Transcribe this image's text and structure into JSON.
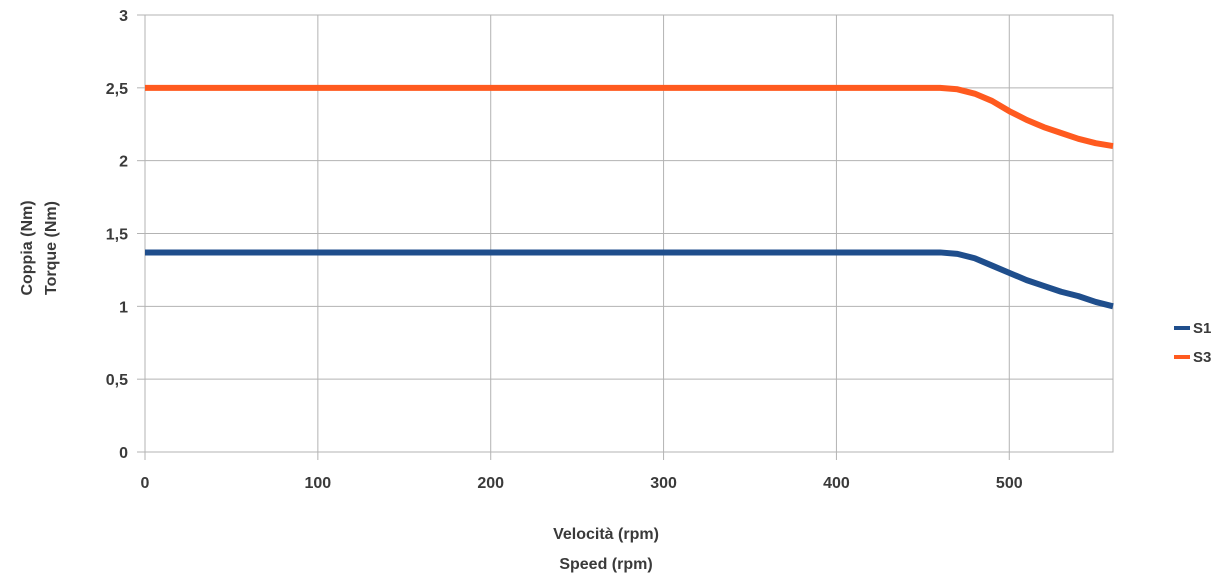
{
  "chart_data": {
    "type": "line",
    "xlabel": [
      "Velocità (rpm)",
      "Speed (rpm)"
    ],
    "ylabel": [
      "Coppia (Nm)",
      "Torque (Nm)"
    ],
    "xlim": [
      0,
      560
    ],
    "ylim": [
      0,
      3
    ],
    "x_ticks": [
      "0",
      "100",
      "200",
      "300",
      "400",
      "500"
    ],
    "x_tick_values": [
      0,
      100,
      200,
      300,
      400,
      500
    ],
    "y_ticks": [
      "0",
      "0,5",
      "1",
      "1,5",
      "2",
      "2,5",
      "3"
    ],
    "y_tick_values": [
      0,
      0.5,
      1,
      1.5,
      2,
      2.5,
      3
    ],
    "grid": true,
    "legend_position": "right",
    "series": [
      {
        "name": "S1",
        "color": "#1f4e8c",
        "points": [
          [
            0,
            1.37
          ],
          [
            100,
            1.37
          ],
          [
            200,
            1.37
          ],
          [
            300,
            1.37
          ],
          [
            400,
            1.37
          ],
          [
            460,
            1.37
          ],
          [
            470,
            1.36
          ],
          [
            480,
            1.33
          ],
          [
            490,
            1.28
          ],
          [
            500,
            1.23
          ],
          [
            510,
            1.18
          ],
          [
            520,
            1.14
          ],
          [
            530,
            1.1
          ],
          [
            540,
            1.07
          ],
          [
            550,
            1.03
          ],
          [
            560,
            1.0
          ]
        ]
      },
      {
        "name": "S3",
        "color": "#ff5a1f",
        "points": [
          [
            0,
            2.5
          ],
          [
            100,
            2.5
          ],
          [
            200,
            2.5
          ],
          [
            300,
            2.5
          ],
          [
            400,
            2.5
          ],
          [
            460,
            2.5
          ],
          [
            470,
            2.49
          ],
          [
            480,
            2.46
          ],
          [
            490,
            2.41
          ],
          [
            500,
            2.34
          ],
          [
            510,
            2.28
          ],
          [
            520,
            2.23
          ],
          [
            530,
            2.19
          ],
          [
            540,
            2.15
          ],
          [
            550,
            2.12
          ],
          [
            560,
            2.1
          ]
        ]
      }
    ]
  }
}
